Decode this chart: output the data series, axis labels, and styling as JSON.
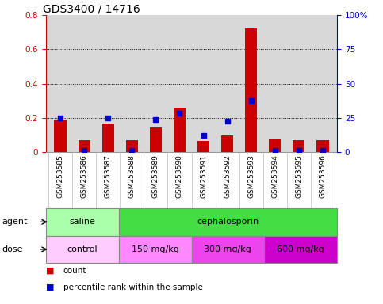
{
  "title": "GDS3400 / 14716",
  "samples": [
    "GSM253585",
    "GSM253586",
    "GSM253587",
    "GSM253588",
    "GSM253589",
    "GSM253590",
    "GSM253591",
    "GSM253592",
    "GSM253593",
    "GSM253594",
    "GSM253595",
    "GSM253596"
  ],
  "count_values": [
    0.19,
    0.07,
    0.165,
    0.07,
    0.145,
    0.26,
    0.065,
    0.095,
    0.72,
    0.075,
    0.07,
    0.07
  ],
  "percentile_values": [
    25,
    1,
    25,
    1,
    23.5,
    28.5,
    12,
    22.5,
    37.5,
    1,
    1,
    1
  ],
  "bar_color": "#cc0000",
  "dot_color": "#0000cc",
  "ylim_left": [
    0,
    0.8
  ],
  "ylim_right": [
    0,
    100
  ],
  "yticks_left": [
    0.0,
    0.2,
    0.4,
    0.6,
    0.8
  ],
  "ytick_labels_left": [
    "0",
    "0.2",
    "0.4",
    "0.6",
    "0.8"
  ],
  "yticks_right": [
    0,
    25,
    50,
    75,
    100
  ],
  "ytick_labels_right": [
    "0",
    "25",
    "50",
    "75",
    "100%"
  ],
  "left_tick_color": "#cc0000",
  "right_tick_color": "#0000cc",
  "plot_bg": "#d8d8d8",
  "fig_bg": "#ffffff",
  "agent_groups": [
    {
      "text": "saline",
      "start": 0,
      "end": 3,
      "color": "#aaffaa"
    },
    {
      "text": "cephalosporin",
      "start": 3,
      "end": 12,
      "color": "#44dd44"
    }
  ],
  "dose_groups": [
    {
      "text": "control",
      "start": 0,
      "end": 3,
      "color": "#ffccff"
    },
    {
      "text": "150 mg/kg",
      "start": 3,
      "end": 6,
      "color": "#ff88ff"
    },
    {
      "text": "300 mg/kg",
      "start": 6,
      "end": 9,
      "color": "#ee44ee"
    },
    {
      "text": "600 mg/kg",
      "start": 9,
      "end": 12,
      "color": "#cc00cc"
    }
  ],
  "agent_label": "agent",
  "dose_label": "dose",
  "legend_count_label": "count",
  "legend_pct_label": "percentile rank within the sample",
  "title_fontsize": 10,
  "tick_fontsize": 7.5,
  "label_fontsize": 8,
  "sample_fontsize": 6.5,
  "group_fontsize": 8
}
